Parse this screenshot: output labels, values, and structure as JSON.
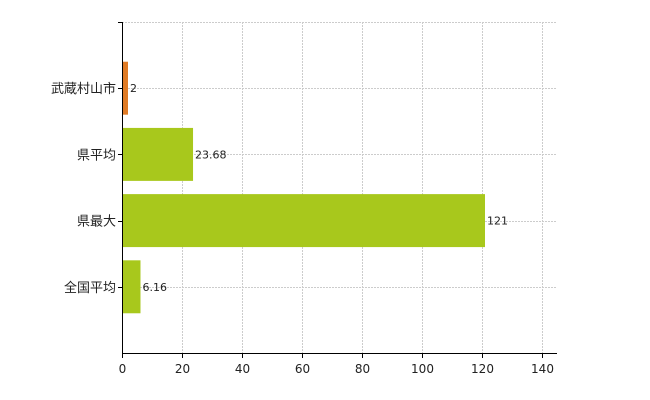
{
  "chart_data": {
    "type": "bar",
    "orientation": "horizontal",
    "categories": [
      "武蔵村山市",
      "県平均",
      "県最大",
      "全国平均"
    ],
    "values": [
      2,
      23.68,
      121,
      6.16
    ],
    "data_labels": [
      "2",
      "23.68",
      "121",
      "6.16"
    ],
    "bar_colors": [
      "#e07b25",
      "#a8c81c",
      "#a8c81c",
      "#a8c81c"
    ],
    "xlim": [
      0,
      145
    ],
    "xticks": [
      0,
      20,
      40,
      60,
      80,
      100,
      120,
      140
    ],
    "grid": true,
    "grid_color": "#cccccc",
    "title": "",
    "xlabel": "",
    "ylabel": ""
  }
}
